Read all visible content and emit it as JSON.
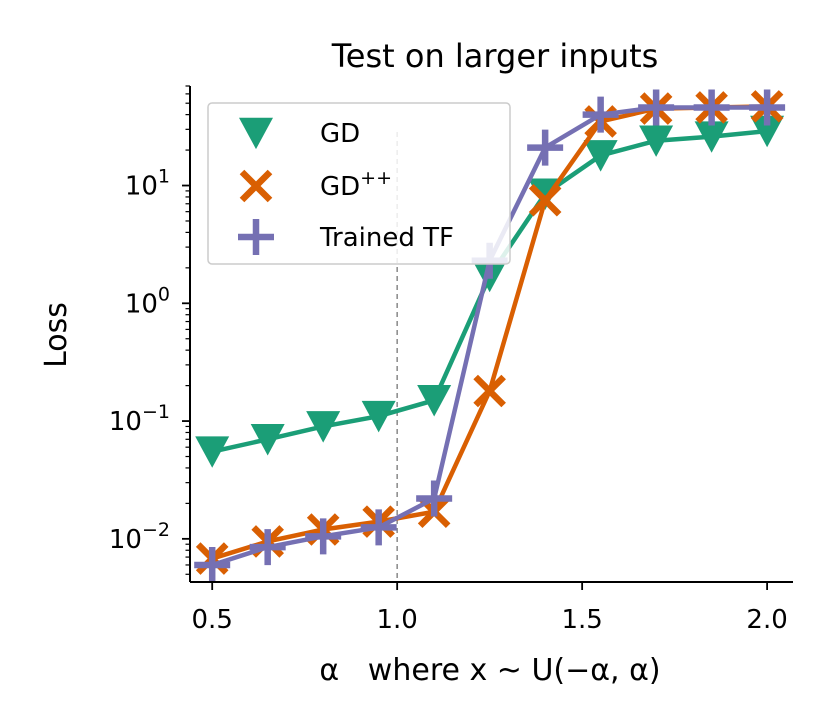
{
  "chart_data": {
    "type": "line",
    "title": "Test on larger inputs",
    "xlabel": "α   where x ~ U(−α, α)",
    "ylabel": "Loss",
    "yscale": "log",
    "xlim": [
      0.44,
      2.07
    ],
    "ylim": [
      0.0043,
      70
    ],
    "xticks": [
      {
        "value": 0.5,
        "label": "0.5"
      },
      {
        "value": 1.0,
        "label": "1.0"
      },
      {
        "value": 1.5,
        "label": "1.5"
      },
      {
        "value": 2.0,
        "label": "2.0"
      }
    ],
    "yticks": [
      {
        "value": 0.01,
        "base": "10",
        "exp": "−2"
      },
      {
        "value": 0.1,
        "base": "10",
        "exp": "−1"
      },
      {
        "value": 1,
        "base": "10",
        "exp": "0"
      },
      {
        "value": 10,
        "base": "10",
        "exp": "1"
      }
    ],
    "vline": {
      "x": 1.0,
      "style": "dashed",
      "color": "#888888"
    },
    "legend_position": "upper-left",
    "x": [
      0.5,
      0.65,
      0.8,
      0.95,
      1.1,
      1.25,
      1.4,
      1.55,
      1.7,
      1.85,
      2.0
    ],
    "series": [
      {
        "name": "GD",
        "superscript": "",
        "marker": "triangle-down",
        "color": "#1b9e77",
        "values": [
          0.055,
          0.07,
          0.09,
          0.11,
          0.15,
          1.7,
          8.5,
          18,
          24,
          26,
          29
        ]
      },
      {
        "name": "GD",
        "superscript": "++",
        "marker": "x",
        "color": "#d95f02",
        "values": [
          0.0068,
          0.0095,
          0.012,
          0.014,
          0.017,
          0.18,
          7.5,
          35,
          45,
          46,
          47
        ]
      },
      {
        "name": "Trained TF",
        "superscript": "",
        "marker": "plus",
        "color": "#7570b3",
        "values": [
          0.006,
          0.0085,
          0.0105,
          0.0125,
          0.022,
          2.3,
          21,
          40,
          46,
          46,
          46
        ]
      }
    ]
  }
}
